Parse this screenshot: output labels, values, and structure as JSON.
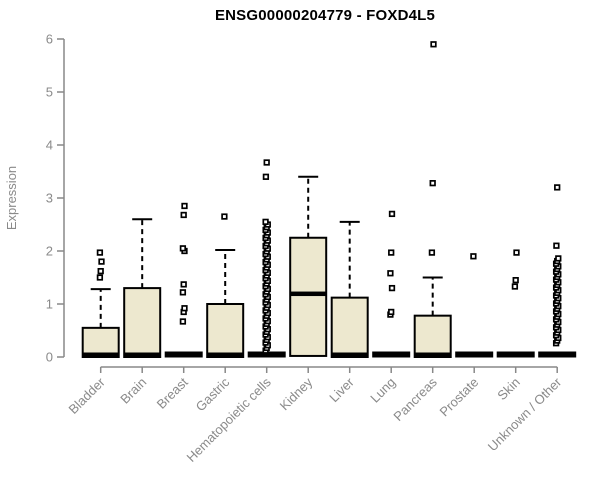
{
  "chart_data": {
    "type": "boxplot",
    "title": "ENSG00000204779 - FOXD4L5",
    "ylabel": "Expression",
    "xlabel": "",
    "ylim": [
      0,
      6
    ],
    "yticks": [
      0,
      1,
      2,
      3,
      4,
      5,
      6
    ],
    "grid": false,
    "legend": null,
    "categories": [
      "Bladder",
      "Brain",
      "Breast",
      "Gastric",
      "Hematopoietic cells",
      "Kidney",
      "Liver",
      "Lung",
      "Pancreas",
      "Prostate",
      "Skin",
      "Unknown / Other"
    ],
    "boxes": [
      {
        "category": "Bladder",
        "q1": 0,
        "median": 0,
        "q3": 0.55,
        "whisker_high": 1.28,
        "outliers": [
          1.5,
          1.62,
          1.8,
          1.97
        ],
        "collapsed": false
      },
      {
        "category": "Brain",
        "q1": 0,
        "median": 0,
        "q3": 1.3,
        "whisker_high": 2.6,
        "outliers": [],
        "collapsed": false
      },
      {
        "category": "Breast",
        "q1": 0,
        "median": 0,
        "q3": 0,
        "whisker_high": null,
        "outliers": [
          0.67,
          0.85,
          0.92,
          1.22,
          1.37,
          2.0,
          2.05,
          2.68,
          2.85
        ],
        "collapsed": true
      },
      {
        "category": "Gastric",
        "q1": 0,
        "median": 0,
        "q3": 1.0,
        "whisker_high": 2.02,
        "outliers": [
          2.65
        ],
        "collapsed": false
      },
      {
        "category": "Hematopoietic cells",
        "q1": 0,
        "median": 0,
        "q3": 0,
        "whisker_high": null,
        "outliers": [
          3.4,
          3.67
        ],
        "outlier_band": {
          "min": 0.12,
          "max": 2.55,
          "count": 49
        },
        "collapsed": true
      },
      {
        "category": "Kidney",
        "q1": 0.02,
        "median": 1.15,
        "q3": 2.25,
        "whisker_high": 3.4,
        "outliers": [],
        "collapsed": false
      },
      {
        "category": "Liver",
        "q1": 0,
        "median": 0,
        "q3": 1.12,
        "whisker_high": 2.55,
        "outliers": [],
        "collapsed": false
      },
      {
        "category": "Lung",
        "q1": 0,
        "median": 0,
        "q3": 0,
        "whisker_high": null,
        "outliers": [
          0.8,
          0.85,
          1.3,
          1.58,
          1.97,
          2.7
        ],
        "collapsed": true
      },
      {
        "category": "Pancreas",
        "q1": 0,
        "median": 0,
        "q3": 0.78,
        "whisker_high": 1.5,
        "outliers": [
          1.97,
          3.28,
          5.9
        ],
        "collapsed": false
      },
      {
        "category": "Prostate",
        "q1": 0,
        "median": 0,
        "q3": 0,
        "whisker_high": null,
        "outliers": [
          1.9
        ],
        "collapsed": true
      },
      {
        "category": "Skin",
        "q1": 0,
        "median": 0,
        "q3": 0,
        "whisker_high": null,
        "outliers": [
          1.33,
          1.45,
          1.97
        ],
        "collapsed": true
      },
      {
        "category": "Unknown / Other",
        "q1": 0,
        "median": 0,
        "q3": 0,
        "whisker_high": null,
        "outliers": [
          2.1,
          3.2
        ],
        "outlier_band": {
          "min": 0.26,
          "max": 1.86,
          "count": 33
        },
        "collapsed": true
      }
    ],
    "colors": {
      "box_fill": "#EDE8CF",
      "box_border": "#000000",
      "median": "#000000",
      "whisker": "#000000",
      "outlier": "#000000",
      "axis": "#888888",
      "tick_label": "#8A8A8A",
      "title": "#000000"
    }
  }
}
